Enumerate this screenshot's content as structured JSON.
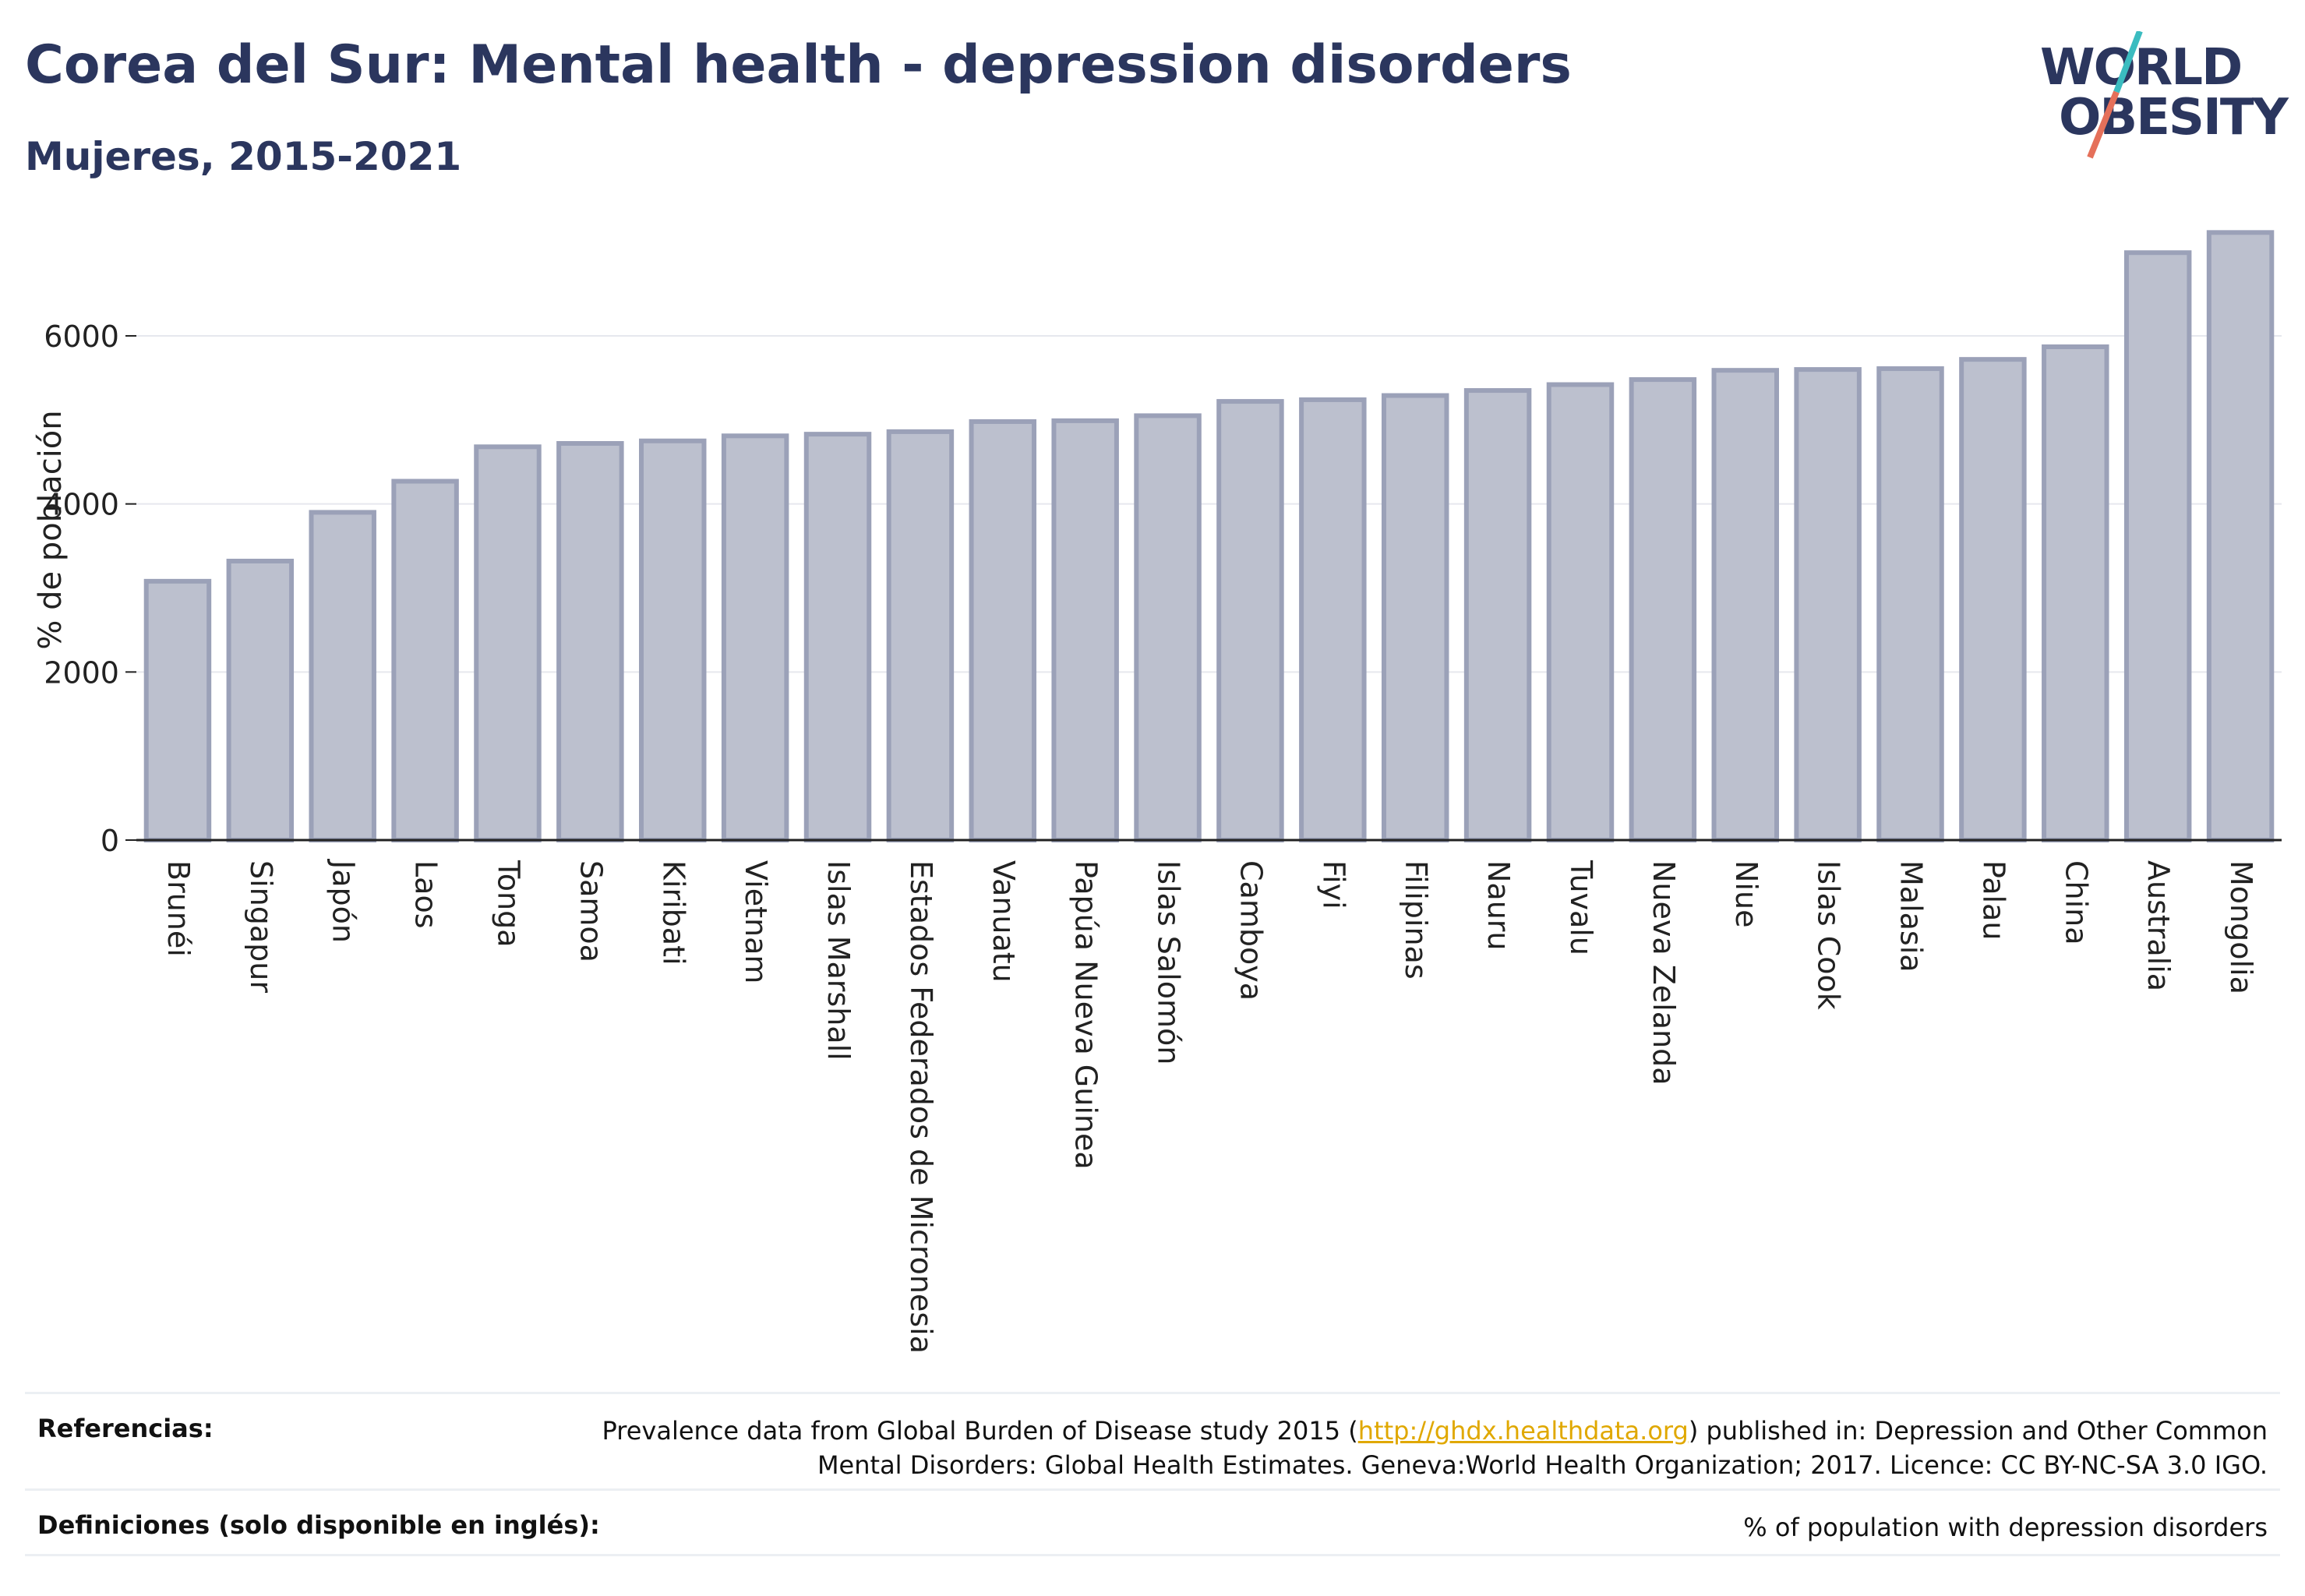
{
  "header": {
    "title": "Corea del Sur: Mental health - depression disorders",
    "subtitle": "Mujeres, 2015-2021"
  },
  "logo": {
    "line1": "WORLD",
    "line2": "OBESITY"
  },
  "colors": {
    "bar_fill": "#bcc0ce",
    "bar_stroke": "#9ba1b8",
    "title": "#2b365e",
    "grid": "#e6e8ee",
    "link": "#e0a800",
    "logo_teal": "#3bbcc0",
    "logo_red": "#e5705a"
  },
  "chart_data": {
    "type": "bar",
    "ylabel": "% de población",
    "ylim": [
      0,
      7400
    ],
    "yticks": [
      0,
      2000,
      4000,
      6000
    ],
    "grid": true,
    "categories": [
      "Brunéi",
      "Singapur",
      "Japón",
      "Laos",
      "Tonga",
      "Samoa",
      "Kiribati",
      "Vietnam",
      "Islas Marshall",
      "Estados Federados de Micronesia",
      "Vanuatu",
      "Papúa Nueva Guinea",
      "Islas Salomón",
      "Camboya",
      "Fiyi",
      "Filipinas",
      "Nauru",
      "Tuvalu",
      "Nueva Zelanda",
      "Niue",
      "Islas Cook",
      "Malasia",
      "Palau",
      "China",
      "Australia",
      "Mongolia"
    ],
    "values": [
      3080,
      3320,
      3900,
      4270,
      4680,
      4720,
      4750,
      4810,
      4830,
      4860,
      4980,
      4990,
      5050,
      5220,
      5240,
      5290,
      5350,
      5420,
      5480,
      5590,
      5600,
      5610,
      5720,
      5870,
      6990,
      7230
    ]
  },
  "footer": {
    "references_label": "Referencias:",
    "references_text_before": "Prevalence data from Global Burden of Disease study 2015 (",
    "references_link": "http://ghdx.healthdata.org",
    "references_text_after": ") published in: Depression and Other Common",
    "references_text_line2": "Mental Disorders: Global Health Estimates. Geneva:World Health Organization; 2017. Licence: CC BY-NC-SA 3.0 IGO.",
    "definitions_label": "Definiciones (solo disponible en inglés):",
    "definitions_text": "% of population with depression disorders"
  }
}
